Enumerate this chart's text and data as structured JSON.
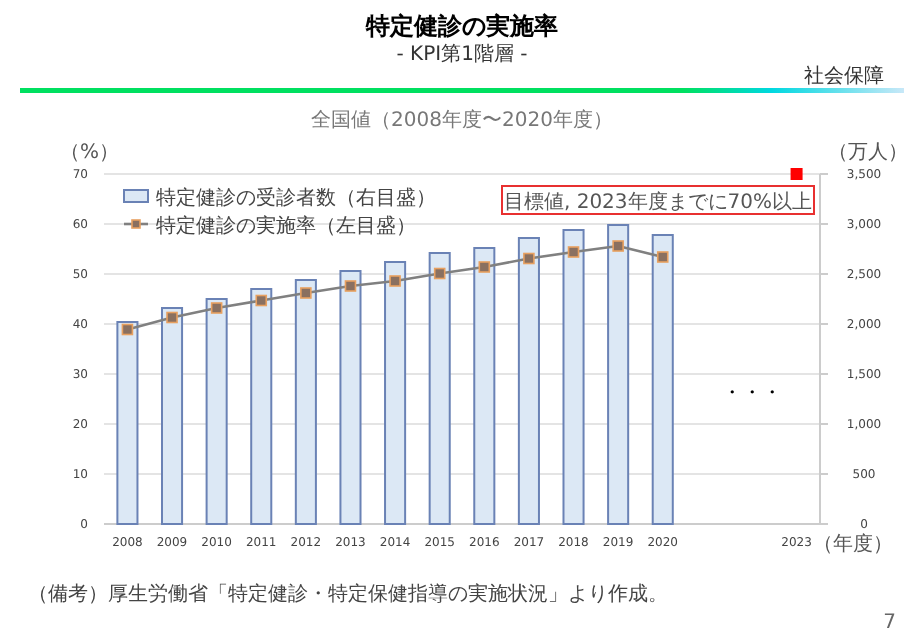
{
  "chart_data": {
    "type": "bar",
    "title": "特定健診の実施率",
    "subtitle": "- KPI第1階層 -",
    "xlabel": "（年度）",
    "ylabel": "（%）",
    "y2label": "（万人）",
    "categories": [
      "2008",
      "2009",
      "2010",
      "2011",
      "2012",
      "2013",
      "2014",
      "2015",
      "2016",
      "2017",
      "2018",
      "2019",
      "2020",
      null,
      null,
      "2023"
    ],
    "series": [
      {
        "name": "特定健診の受診者数（右目盛）",
        "axis": "y2",
        "color": "#dce8f5",
        "values": [
          2020,
          2160,
          2250,
          2350,
          2440,
          2530,
          2620,
          2710,
          2760,
          2860,
          2940,
          2990,
          2890,
          null,
          null,
          null
        ]
      },
      {
        "name": "特定健診の実施率（左目盛）",
        "type": "line",
        "color": "#808080",
        "values": [
          38.9,
          41.3,
          43.2,
          44.7,
          46.2,
          47.6,
          48.6,
          50.1,
          51.4,
          53.1,
          54.4,
          55.6,
          53.4,
          null,
          null,
          null
        ]
      },
      {
        "type": "scatter",
        "color": "#ff0000",
        "values": [
          null,
          null,
          null,
          null,
          null,
          null,
          null,
          null,
          null,
          null,
          null,
          null,
          null,
          null,
          null,
          70
        ]
      }
    ],
    "ylim": [
      0,
      70
    ],
    "yticks": [
      0,
      10,
      20,
      30,
      40,
      50,
      60,
      70
    ],
    "y2lim": [
      0,
      3500
    ],
    "y2ticks": [
      {
        "value": 0,
        "label": "0"
      },
      {
        "value": 500,
        "label": "500"
      },
      {
        "value": 1000,
        "label": "1,000"
      },
      {
        "value": 1500,
        "label": "1,500"
      },
      {
        "value": 2000,
        "label": "2,000"
      },
      {
        "value": 2500,
        "label": "2,500"
      },
      {
        "value": 3000,
        "label": "3,000"
      },
      {
        "value": 3500,
        "label": "3,500"
      }
    ],
    "grid": "y",
    "legend": "top left",
    "marker": "square",
    "annotations": [
      "社会保障",
      "全国値（2008年度〜2020年度）",
      {
        "text": "目標値, 2023年度までに70%以上",
        "x": "2023",
        "y": 70
      },
      "・・・",
      "（備考）厚生労働省「特定健診・特定保健指導の実施状況」より作成。",
      "7"
    ]
  }
}
